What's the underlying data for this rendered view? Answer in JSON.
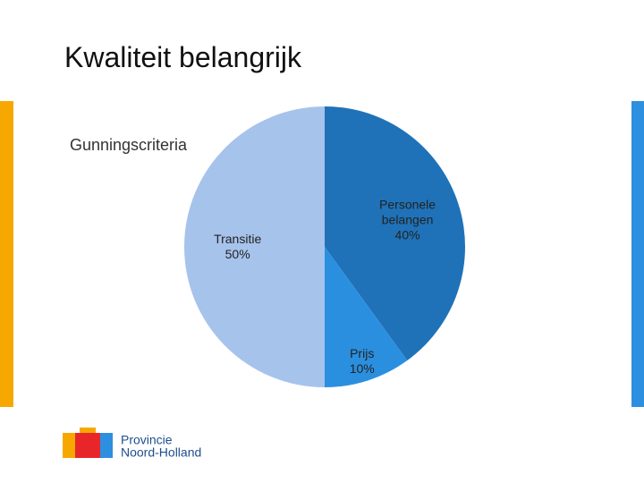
{
  "slide_title": "Kwaliteit belangrijk",
  "chart_data": {
    "type": "pie",
    "title": "Gunningscriteria",
    "categories": [
      "Personele belangen",
      "Prijs",
      "Transitie"
    ],
    "values": [
      40,
      10,
      50
    ],
    "value_labels": [
      "40%",
      "10%",
      "50%"
    ],
    "colors": [
      "#1f72b8",
      "#2b8fe0",
      "#a6c3ec"
    ]
  },
  "logo": {
    "line1": "Provincie",
    "line2": "Noord-Holland"
  }
}
